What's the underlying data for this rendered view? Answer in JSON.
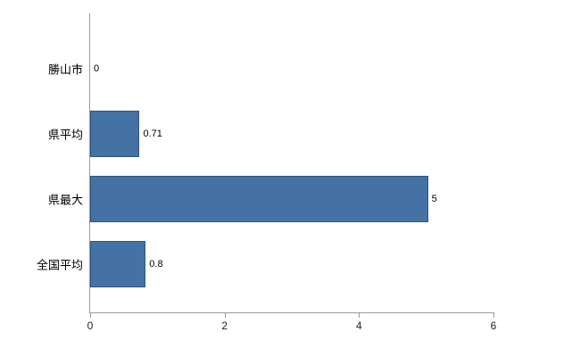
{
  "chart_data": {
    "type": "bar",
    "orientation": "horizontal",
    "categories": [
      "勝山市",
      "県平均",
      "県最大",
      "全国平均"
    ],
    "values": [
      0,
      0.71,
      5,
      0.8
    ],
    "value_labels": [
      "0",
      "0.71",
      "5",
      "0.8"
    ],
    "title": "",
    "xlabel": "",
    "ylabel": "",
    "xlim": [
      0,
      6
    ],
    "xticks": [
      0,
      2,
      4,
      6
    ],
    "grid": false,
    "legend": false,
    "bar_color": "#4472a4",
    "bar_border_color": "#2f5580",
    "axis_color": "#9a9a9a"
  }
}
